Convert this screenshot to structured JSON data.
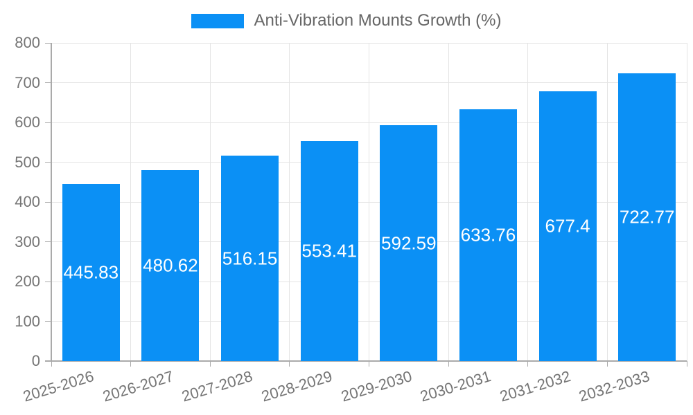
{
  "legend": {
    "label": "Anti-Vibration Mounts Growth (%)"
  },
  "chart_data": {
    "type": "bar",
    "title": "Anti-Vibration Mounts Growth (%)",
    "series_name": "Anti-Vibration Mounts Growth (%)",
    "categories": [
      "2025-2026",
      "2026-2027",
      "2027-2028",
      "2028-2029",
      "2029-2030",
      "2030-2031",
      "2031-2032",
      "2032-2033"
    ],
    "values": [
      445.83,
      480.62,
      516.15,
      553.41,
      592.59,
      633.76,
      677.4,
      722.77
    ],
    "value_labels": [
      "445.83",
      "480.62",
      "516.15",
      "553.41",
      "592.59",
      "633.76",
      "677.4",
      "722.77"
    ],
    "yticks": [
      0,
      100,
      200,
      300,
      400,
      500,
      600,
      700,
      800
    ],
    "ylim": [
      0,
      800
    ],
    "xlabel": "",
    "ylabel": "",
    "grid": true,
    "legend_position": "top",
    "data_labels": "inside-center"
  },
  "colors": {
    "bar": "#0b90f5",
    "bar_label": "#ffffff",
    "axis_text": "#757575",
    "legend_text": "#666666",
    "axis_line": "#aaaaaa",
    "gridline": "#e4e4e4",
    "background": "#ffffff"
  }
}
